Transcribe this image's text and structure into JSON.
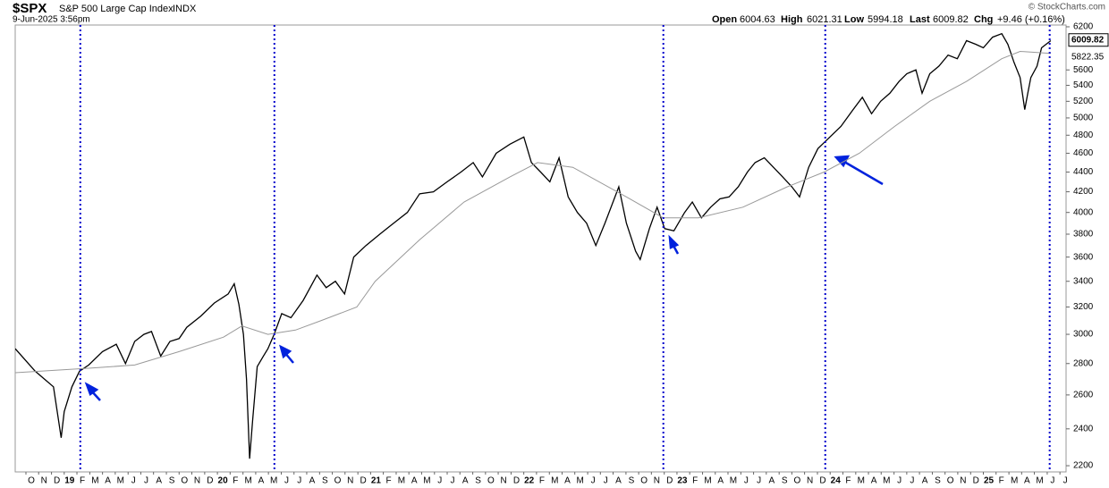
{
  "chart_data": {
    "type": "line",
    "title": "$SPX",
    "subtitle": "S&P 500 Large Cap Index",
    "exchange": "INDX",
    "date": "9-Jun-2025 3:56pm",
    "watermark": "© StockCharts.com",
    "quote": {
      "open_label": "Open",
      "open": 6004.63,
      "high_label": "High",
      "high": 6021.31,
      "low_label": "Low",
      "low": 5994.18,
      "last_label": "Last",
      "last": 6009.82,
      "chg_label": "Chg",
      "chg": "+9.46 (+0.16%)"
    },
    "ma_value": 5822.35,
    "log_scale": true,
    "xlim": [
      2018.68,
      2025.54
    ],
    "ylim": [
      2168,
      6226
    ],
    "yticks": [
      2200,
      2400,
      2600,
      2800,
      3000,
      3200,
      3400,
      3600,
      3800,
      4000,
      4200,
      4400,
      4600,
      4800,
      5000,
      5200,
      5400,
      5600,
      6200
    ],
    "xticks": [
      {
        "value": 2018.75,
        "label": "O"
      },
      {
        "value": 2018.833,
        "label": "N"
      },
      {
        "value": 2018.917,
        "label": "D"
      },
      {
        "value": 2019.0,
        "label": "19"
      },
      {
        "value": 2019.083,
        "label": "F"
      },
      {
        "value": 2019.167,
        "label": "M"
      },
      {
        "value": 2019.25,
        "label": "A"
      },
      {
        "value": 2019.333,
        "label": "M"
      },
      {
        "value": 2019.417,
        "label": "J"
      },
      {
        "value": 2019.5,
        "label": "J"
      },
      {
        "value": 2019.583,
        "label": "A"
      },
      {
        "value": 2019.667,
        "label": "S"
      },
      {
        "value": 2019.75,
        "label": "O"
      },
      {
        "value": 2019.833,
        "label": "N"
      },
      {
        "value": 2019.917,
        "label": "D"
      },
      {
        "value": 2020.0,
        "label": "20"
      },
      {
        "value": 2020.083,
        "label": "F"
      },
      {
        "value": 2020.167,
        "label": "M"
      },
      {
        "value": 2020.25,
        "label": "A"
      },
      {
        "value": 2020.333,
        "label": "M"
      },
      {
        "value": 2020.417,
        "label": "J"
      },
      {
        "value": 2020.5,
        "label": "J"
      },
      {
        "value": 2020.583,
        "label": "A"
      },
      {
        "value": 2020.667,
        "label": "S"
      },
      {
        "value": 2020.75,
        "label": "O"
      },
      {
        "value": 2020.833,
        "label": "N"
      },
      {
        "value": 2020.917,
        "label": "D"
      },
      {
        "value": 2021.0,
        "label": "21"
      },
      {
        "value": 2021.083,
        "label": "F"
      },
      {
        "value": 2021.167,
        "label": "M"
      },
      {
        "value": 2021.25,
        "label": "A"
      },
      {
        "value": 2021.333,
        "label": "M"
      },
      {
        "value": 2021.417,
        "label": "J"
      },
      {
        "value": 2021.5,
        "label": "J"
      },
      {
        "value": 2021.583,
        "label": "A"
      },
      {
        "value": 2021.667,
        "label": "S"
      },
      {
        "value": 2021.75,
        "label": "O"
      },
      {
        "value": 2021.833,
        "label": "N"
      },
      {
        "value": 2021.917,
        "label": "D"
      },
      {
        "value": 2022.0,
        "label": "22"
      },
      {
        "value": 2022.083,
        "label": "F"
      },
      {
        "value": 2022.167,
        "label": "M"
      },
      {
        "value": 2022.25,
        "label": "A"
      },
      {
        "value": 2022.333,
        "label": "M"
      },
      {
        "value": 2022.417,
        "label": "J"
      },
      {
        "value": 2022.5,
        "label": "J"
      },
      {
        "value": 2022.583,
        "label": "A"
      },
      {
        "value": 2022.667,
        "label": "S"
      },
      {
        "value": 2022.75,
        "label": "O"
      },
      {
        "value": 2022.833,
        "label": "N"
      },
      {
        "value": 2022.917,
        "label": "D"
      },
      {
        "value": 2023.0,
        "label": "23"
      },
      {
        "value": 2023.083,
        "label": "F"
      },
      {
        "value": 2023.167,
        "label": "M"
      },
      {
        "value": 2023.25,
        "label": "A"
      },
      {
        "value": 2023.333,
        "label": "M"
      },
      {
        "value": 2023.417,
        "label": "J"
      },
      {
        "value": 2023.5,
        "label": "J"
      },
      {
        "value": 2023.583,
        "label": "A"
      },
      {
        "value": 2023.667,
        "label": "S"
      },
      {
        "value": 2023.75,
        "label": "O"
      },
      {
        "value": 2023.833,
        "label": "N"
      },
      {
        "value": 2023.917,
        "label": "D"
      },
      {
        "value": 2024.0,
        "label": "24"
      },
      {
        "value": 2024.083,
        "label": "F"
      },
      {
        "value": 2024.167,
        "label": "M"
      },
      {
        "value": 2024.25,
        "label": "A"
      },
      {
        "value": 2024.333,
        "label": "M"
      },
      {
        "value": 2024.417,
        "label": "J"
      },
      {
        "value": 2024.5,
        "label": "J"
      },
      {
        "value": 2024.583,
        "label": "A"
      },
      {
        "value": 2024.667,
        "label": "S"
      },
      {
        "value": 2024.75,
        "label": "O"
      },
      {
        "value": 2024.833,
        "label": "N"
      },
      {
        "value": 2024.917,
        "label": "D"
      },
      {
        "value": 2025.0,
        "label": "25"
      },
      {
        "value": 2025.083,
        "label": "F"
      },
      {
        "value": 2025.167,
        "label": "M"
      },
      {
        "value": 2025.25,
        "label": "A"
      },
      {
        "value": 2025.333,
        "label": "M"
      },
      {
        "value": 2025.417,
        "label": "J"
      },
      {
        "value": 2025.5,
        "label": "J"
      }
    ],
    "series": [
      {
        "color": "#000000",
        "x": [
          2018.68,
          2018.81,
          2018.87,
          2018.93,
          2018.98,
          2019.0,
          2019.05,
          2019.1,
          2019.16,
          2019.25,
          2019.34,
          2019.4,
          2019.46,
          2019.52,
          2019.57,
          2019.63,
          2019.69,
          2019.75,
          2019.8,
          2019.89,
          2019.98,
          2020.07,
          2020.11,
          2020.14,
          2020.17,
          2020.19,
          2020.21,
          2020.23,
          2020.26,
          2020.3,
          2020.33,
          2020.37,
          2020.42,
          2020.48,
          2020.56,
          2020.65,
          2020.71,
          2020.77,
          2020.83,
          2020.89,
          2020.97,
          2021.06,
          2021.15,
          2021.24,
          2021.32,
          2021.41,
          2021.5,
          2021.59,
          2021.67,
          2021.73,
          2021.82,
          2021.91,
          2022.0,
          2022.05,
          2022.11,
          2022.17,
          2022.23,
          2022.29,
          2022.35,
          2022.41,
          2022.47,
          2022.53,
          2022.62,
          2022.67,
          2022.73,
          2022.76,
          2022.82,
          2022.87,
          2022.92,
          2022.98,
          2023.05,
          2023.1,
          2023.16,
          2023.22,
          2023.28,
          2023.34,
          2023.4,
          2023.46,
          2023.51,
          2023.57,
          2023.63,
          2023.69,
          2023.75,
          2023.8,
          2023.86,
          2023.92,
          2023.98,
          2024.07,
          2024.15,
          2024.21,
          2024.27,
          2024.33,
          2024.39,
          2024.45,
          2024.5,
          2024.56,
          2024.6,
          2024.65,
          2024.71,
          2024.77,
          2024.83,
          2024.89,
          2024.95,
          2025.0,
          2025.06,
          2025.12,
          2025.16,
          2025.2,
          2025.24,
          2025.27,
          2025.29,
          2025.31,
          2025.35,
          2025.38,
          2025.41,
          2025.44
        ],
        "values": [
          2900,
          2750,
          2700,
          2650,
          2350,
          2500,
          2650,
          2750,
          2790,
          2880,
          2930,
          2800,
          2950,
          3000,
          3020,
          2850,
          2950,
          2970,
          3050,
          3130,
          3230,
          3300,
          3380,
          3220,
          3000,
          2700,
          2237,
          2450,
          2780,
          2850,
          2900,
          3000,
          3150,
          3120,
          3250,
          3450,
          3350,
          3400,
          3300,
          3600,
          3700,
          3800,
          3900,
          4000,
          4180,
          4200,
          4300,
          4400,
          4500,
          4350,
          4600,
          4700,
          4780,
          4500,
          4400,
          4300,
          4550,
          4150,
          4000,
          3900,
          3700,
          3900,
          4250,
          3900,
          3650,
          3580,
          3850,
          4050,
          3850,
          3830,
          4000,
          4100,
          3950,
          4050,
          4130,
          4150,
          4250,
          4400,
          4500,
          4550,
          4450,
          4350,
          4250,
          4150,
          4450,
          4650,
          4750,
          4900,
          5100,
          5250,
          5050,
          5200,
          5300,
          5450,
          5550,
          5600,
          5300,
          5550,
          5650,
          5800,
          5750,
          6000,
          5950,
          5900,
          6050,
          6100,
          5950,
          5700,
          5500,
          5100,
          5300,
          5500,
          5650,
          5900,
          5950,
          6000
        ]
      },
      {
        "color": "#999999",
        "x": [
          2018.68,
          2019.17,
          2019.46,
          2019.75,
          2020.04,
          2020.16,
          2020.33,
          2020.51,
          2020.68,
          2020.91,
          2021.03,
          2021.32,
          2021.61,
          2021.91,
          2022.09,
          2022.32,
          2022.67,
          2022.91,
          2023.14,
          2023.43,
          2023.72,
          2023.96,
          2024.19,
          2024.42,
          2024.65,
          2024.89,
          2025.12,
          2025.24,
          2025.44
        ],
        "values": [
          2740,
          2770,
          2790,
          2880,
          2980,
          3060,
          3000,
          3030,
          3100,
          3200,
          3400,
          3750,
          4100,
          4350,
          4500,
          4450,
          4150,
          3950,
          3950,
          4050,
          4250,
          4400,
          4600,
          4900,
          5200,
          5450,
          5750,
          5850,
          5822.35
        ]
      }
    ],
    "vlines": {
      "color": "#0000cc",
      "x": [
        2019.105,
        2020.372,
        2022.911,
        2023.968,
        2025.433
      ]
    }
  }
}
